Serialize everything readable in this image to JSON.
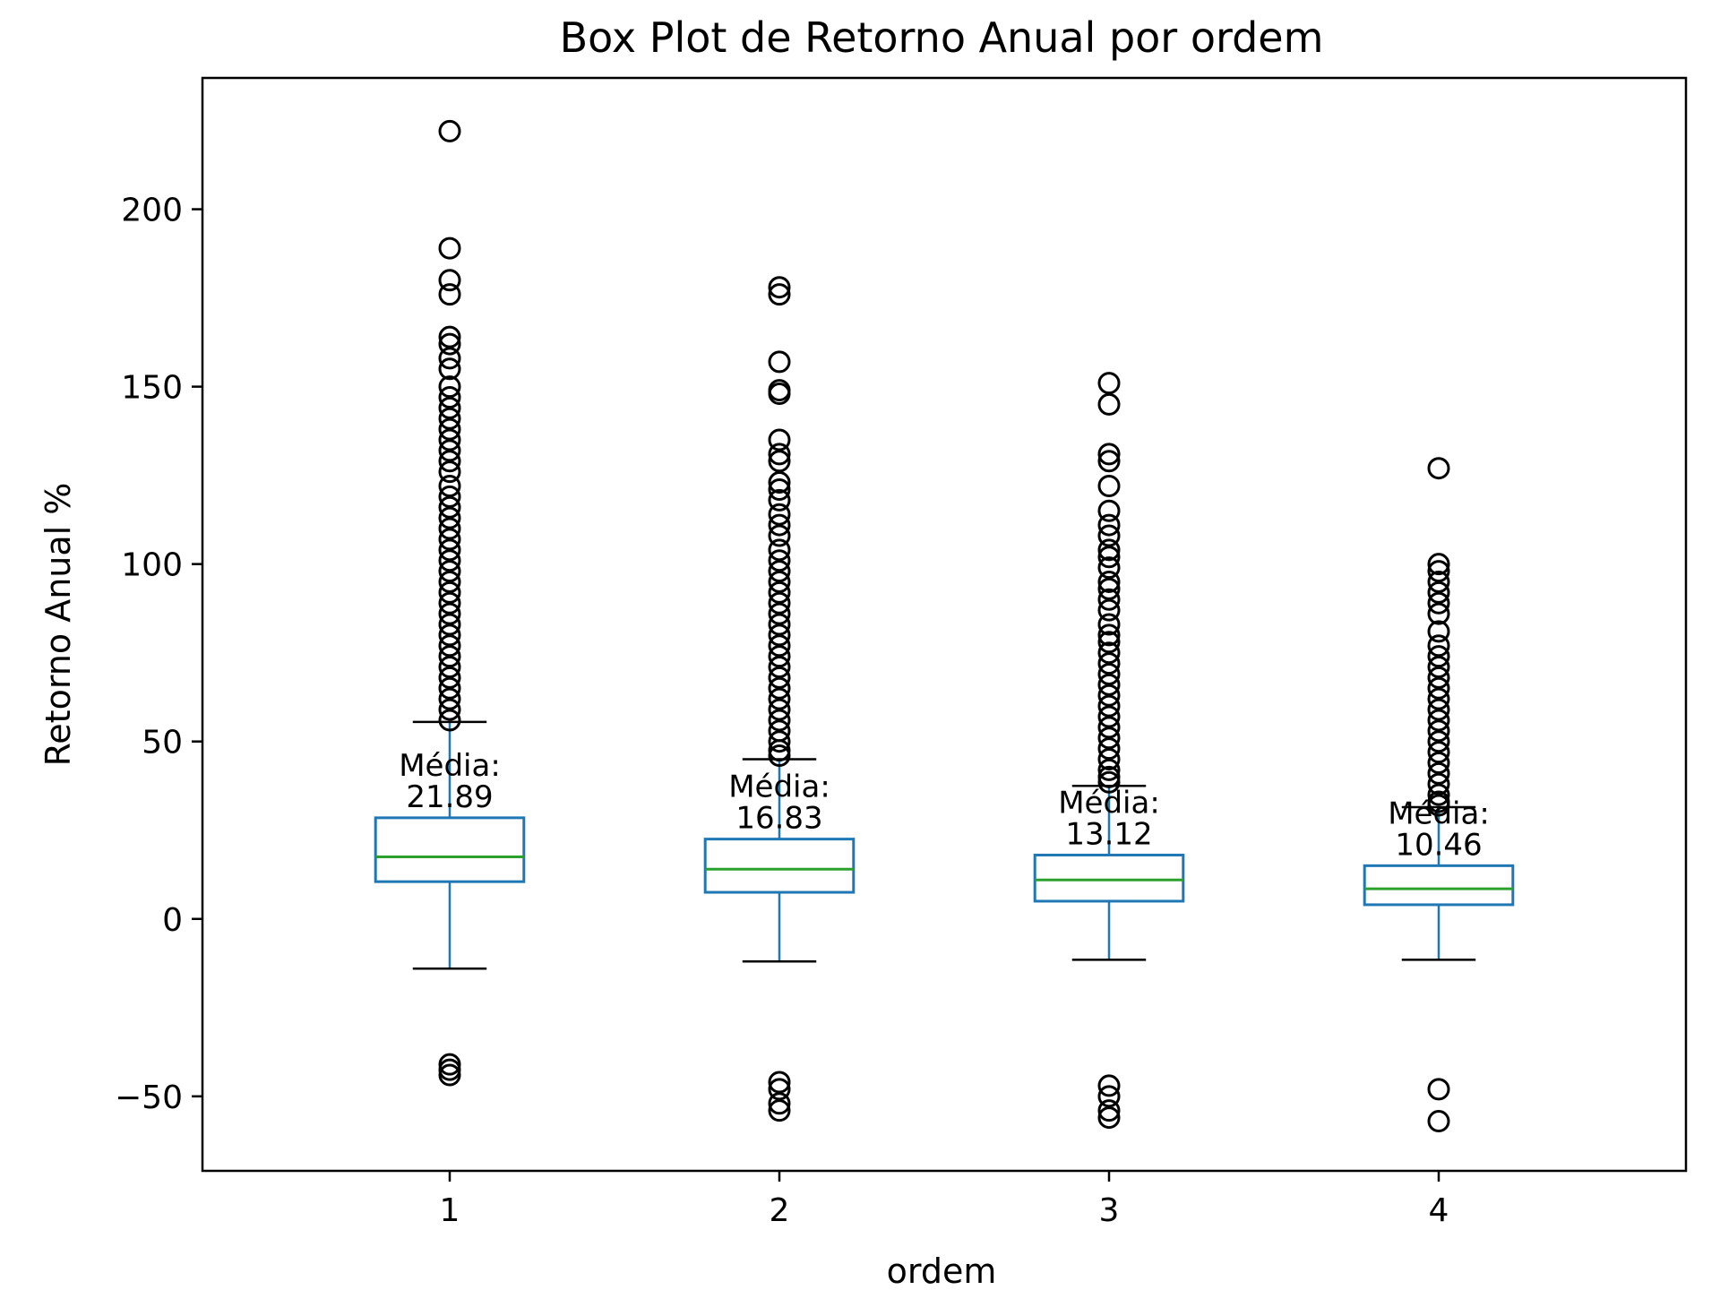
{
  "chart_data": {
    "type": "boxplot",
    "title": "Box Plot de Retorno Anual por ordem",
    "xlabel": "ordem",
    "ylabel": "Retorno Anual %",
    "categories": [
      "1",
      "2",
      "3",
      "4"
    ],
    "ylim": [
      -71,
      237
    ],
    "yticks": [
      -50,
      0,
      50,
      100,
      150,
      200
    ],
    "ytick_labels": [
      "−50",
      "0",
      "50",
      "100",
      "150",
      "200"
    ],
    "grid": false,
    "colors": {
      "box": "#1f77b4",
      "median": "#2ca02c",
      "whisker": "#1f77b4",
      "cap": "#000000",
      "flier": "#000000"
    },
    "mean_prefix": "Média:",
    "boxes": [
      {
        "category": "1",
        "whisker_low": -14,
        "q1": 10.5,
        "median": 17.5,
        "q3": 28.5,
        "whisker_high": 55.5,
        "mean": "21.89",
        "fliers": [
          222,
          189,
          180,
          176,
          164,
          162,
          158,
          155,
          150,
          147,
          144,
          141,
          138,
          135,
          132,
          129,
          126,
          122,
          119,
          116,
          113,
          110,
          107,
          104,
          101,
          98,
          95,
          92,
          89,
          86,
          83,
          80,
          77,
          74,
          71,
          68,
          65,
          62,
          59,
          56,
          -41,
          -42.5,
          -44
        ]
      },
      {
        "category": "2",
        "whisker_low": -12,
        "q1": 7.5,
        "median": 14,
        "q3": 22.5,
        "whisker_high": 45,
        "mean": "16.83",
        "fliers": [
          178,
          176,
          157,
          149,
          148,
          135,
          131,
          129,
          123,
          121,
          118,
          114,
          111,
          108,
          104,
          101,
          98,
          95,
          92,
          89,
          86,
          83,
          80,
          77,
          74,
          71,
          68,
          65,
          62,
          59,
          56,
          53,
          50,
          47.5,
          46,
          -46,
          -48,
          -52,
          -54
        ]
      },
      {
        "category": "3",
        "whisker_low": -11.5,
        "q1": 5,
        "median": 11,
        "q3": 18,
        "whisker_high": 37.5,
        "mean": "13.12",
        "fliers": [
          151,
          145,
          131,
          129,
          122,
          115,
          111,
          108,
          104,
          102,
          99,
          95,
          93,
          90,
          87,
          83,
          80,
          78,
          75,
          72,
          69,
          66,
          63,
          60,
          57,
          54,
          51,
          48,
          45,
          42,
          40,
          38.5,
          -47,
          -50,
          -54,
          -56
        ]
      },
      {
        "category": "4",
        "whisker_low": -11.5,
        "q1": 4,
        "median": 8.5,
        "q3": 15,
        "whisker_high": 31.5,
        "mean": "10.46",
        "fliers": [
          127,
          100,
          98,
          95,
          92,
          89,
          86,
          81,
          77,
          74,
          71,
          68,
          65,
          62,
          59,
          56,
          53,
          50,
          47,
          44,
          41,
          38,
          35,
          33,
          32,
          -48,
          -57
        ]
      }
    ]
  }
}
